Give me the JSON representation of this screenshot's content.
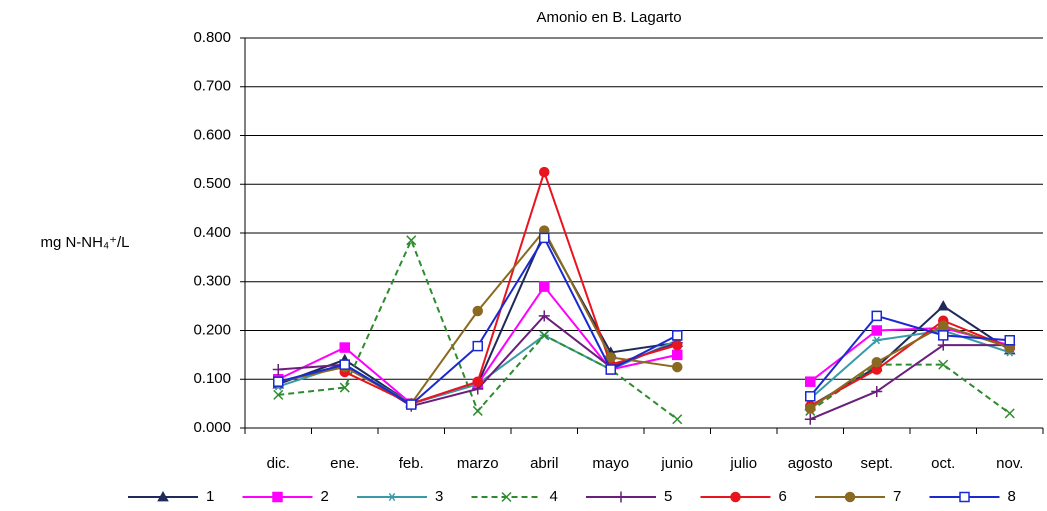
{
  "chart_data": {
    "type": "line",
    "title": "Amonio en B. Lagarto",
    "y_label": "mg N-NH₄⁺/L",
    "categories": [
      "dic.",
      "ene.",
      "feb.",
      "marzo",
      "abril",
      "mayo",
      "junio",
      "julio",
      "agosto",
      "sept.",
      "oct.",
      "nov."
    ],
    "ylim": [
      0,
      0.8
    ],
    "yticks": [
      {
        "value": 0,
        "label": "0.000"
      },
      {
        "value": 0.1,
        "label": "0.100"
      },
      {
        "value": 0.2,
        "label": "0.200"
      },
      {
        "value": 0.3,
        "label": "0.300"
      },
      {
        "value": 0.4,
        "label": "0.400"
      },
      {
        "value": 0.5,
        "label": "0.500"
      },
      {
        "value": 0.6,
        "label": "0.600"
      },
      {
        "value": 0.7,
        "label": "0.700"
      },
      {
        "value": 0.8,
        "label": "0.800"
      }
    ],
    "grid": true,
    "legend": "bottom",
    "series": [
      {
        "name": "1",
        "color": "#1f2a5a",
        "marker": "triangle",
        "values": [
          0.09,
          0.14,
          0.05,
          0.09,
          0.4,
          0.155,
          0.175,
          null,
          0.045,
          0.125,
          0.25,
          0.16
        ]
      },
      {
        "name": "2",
        "color": "#ff00ff",
        "marker": "square",
        "values": [
          0.1,
          0.165,
          0.05,
          0.09,
          0.29,
          0.12,
          0.15,
          null,
          0.095,
          0.2,
          0.205,
          0.17
        ]
      },
      {
        "name": "3",
        "color": "#3a9aa8",
        "marker": "star",
        "values": [
          0.085,
          0.13,
          0.05,
          0.09,
          0.19,
          0.12,
          0.18,
          null,
          0.06,
          0.18,
          0.2,
          0.155
        ]
      },
      {
        "name": "4",
        "color": "#2e8b2e",
        "marker": "x",
        "dashed": true,
        "values": [
          0.068,
          0.083,
          0.385,
          0.035,
          0.19,
          0.12,
          0.018,
          null,
          0.035,
          0.13,
          0.13,
          0.03
        ]
      },
      {
        "name": "5",
        "color": "#6a1f7a",
        "marker": "plus",
        "values": [
          0.12,
          0.13,
          0.045,
          0.08,
          0.23,
          0.125,
          0.175,
          null,
          0.018,
          0.075,
          0.17,
          0.17
        ]
      },
      {
        "name": "6",
        "color": "#e8141e",
        "marker": "circle",
        "values": [
          null,
          0.115,
          0.05,
          0.095,
          0.525,
          0.13,
          0.17,
          null,
          0.045,
          0.12,
          0.22,
          0.165
        ]
      },
      {
        "name": "7",
        "color": "#8a6a20",
        "marker": "circle",
        "values": [
          0.095,
          0.125,
          0.05,
          0.24,
          0.405,
          0.145,
          0.125,
          null,
          0.04,
          0.135,
          0.21,
          0.165
        ]
      },
      {
        "name": "8",
        "color": "#1a2ad0",
        "marker": "open-square",
        "values": [
          0.095,
          0.13,
          0.048,
          0.168,
          0.39,
          0.12,
          0.19,
          null,
          0.065,
          0.23,
          0.19,
          0.18
        ]
      }
    ]
  }
}
